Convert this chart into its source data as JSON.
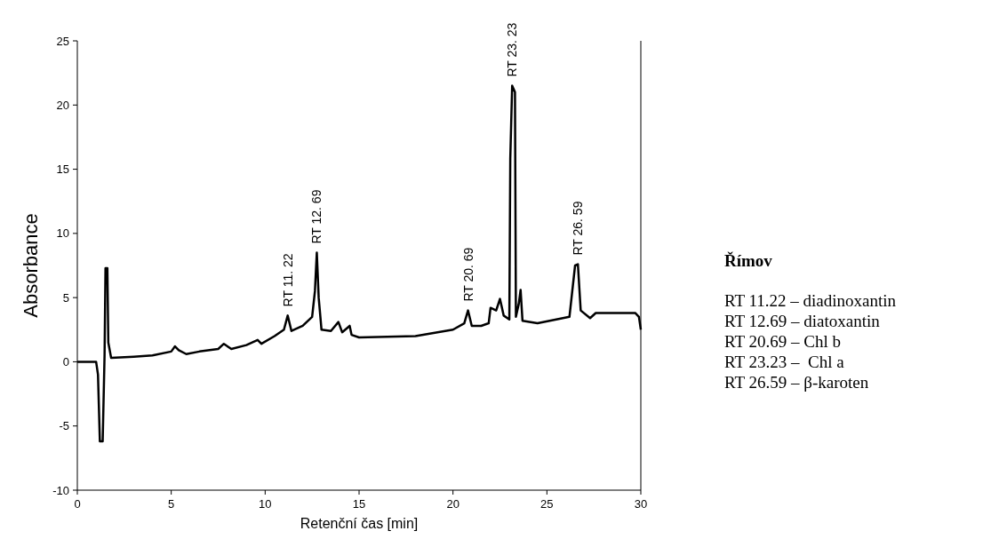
{
  "chart_data": {
    "type": "line",
    "xlabel": "Retenční čas [min]",
    "ylabel": "Absorbance",
    "xlim": [
      0,
      30
    ],
    "ylim": [
      -10,
      25
    ],
    "xticks": [
      0,
      5,
      10,
      15,
      20,
      25,
      30
    ],
    "yticks": [
      -10,
      -5,
      0,
      5,
      10,
      15,
      20,
      25
    ],
    "grid": false,
    "line_style": "solid",
    "series": [
      {
        "color": "#000000",
        "x": [
          0,
          1.0,
          1.1,
          1.2,
          1.35,
          1.45,
          1.5,
          1.6,
          1.65,
          1.8,
          3,
          4,
          5,
          5.2,
          5.4,
          5.8,
          6.5,
          7.5,
          7.8,
          8.2,
          9,
          9.6,
          9.8,
          10.5,
          11,
          11.2,
          11.4,
          12,
          12.5,
          12.65,
          12.75,
          12.85,
          13.0,
          13.5,
          13.9,
          14.1,
          14.5,
          14.6,
          15,
          18,
          20,
          20.6,
          20.8,
          21.0,
          21.5,
          21.9,
          22.0,
          22.3,
          22.5,
          22.7,
          23.0,
          23.05,
          23.15,
          23.3,
          23.35,
          23.5,
          23.6,
          23.7,
          24.5,
          25.5,
          26.2,
          26.5,
          26.65,
          26.8,
          27.3,
          27.6,
          29.7,
          29.9,
          30
        ],
        "values": [
          0,
          0,
          -1,
          -6.2,
          -6.2,
          0.5,
          7.3,
          7.3,
          1.5,
          0.3,
          0.4,
          0.5,
          0.8,
          1.2,
          0.9,
          0.6,
          0.8,
          1.0,
          1.4,
          1.0,
          1.3,
          1.7,
          1.4,
          2.0,
          2.5,
          3.6,
          2.4,
          2.8,
          3.5,
          5.5,
          8.5,
          5,
          2.5,
          2.4,
          3.1,
          2.3,
          2.8,
          2.1,
          1.9,
          2.0,
          2.5,
          3.0,
          4.0,
          2.8,
          2.8,
          3.0,
          4.2,
          4.0,
          4.9,
          3.6,
          3.3,
          15.8,
          21.5,
          21,
          3.5,
          4.5,
          5.6,
          3.2,
          3.0,
          3.3,
          3.5,
          7.5,
          7.6,
          4.0,
          3.4,
          3.8,
          3.8,
          3.5,
          2.5
        ]
      }
    ],
    "annotations": [
      {
        "text": "RT 11. 22",
        "x": 11.2,
        "y": 3.6
      },
      {
        "text": "RT 12. 69",
        "x": 12.75,
        "y": 8.5
      },
      {
        "text": "RT 20. 69",
        "x": 20.8,
        "y": 4.0
      },
      {
        "text": "RT 23. 23",
        "x": 23.15,
        "y": 21.5
      },
      {
        "text": "RT 26. 59",
        "x": 26.65,
        "y": 7.6
      },
      "Římov",
      "RT 11.22 – diadinoxantin",
      "RT 12.69 – diatoxantin",
      "RT 20.69 – Chl b",
      "RT 23.23 –  Chl a",
      "RT 26.59 – β-karoten"
    ]
  }
}
